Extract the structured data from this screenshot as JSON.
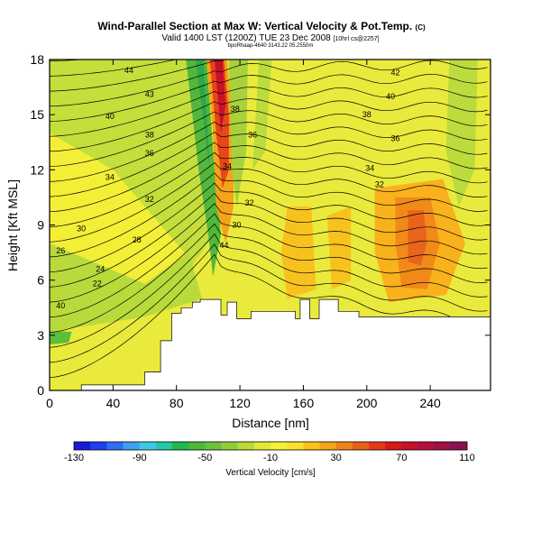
{
  "header": {
    "title": "Wind-Parallel Section at Max W: Vertical Velocity & Pot.Temp.",
    "title_mark": "(C)",
    "subtitle": "Valid 1400 LST (1200Z) TUE 23 Dec 2008",
    "subtitle_note": "[10hrl cs@2257]",
    "tiny_note": "bpoRhaap-4640 3143.22 05.2550m"
  },
  "chart_data": {
    "type": "heatmap",
    "xlabel": "Distance [nm]",
    "ylabel": "Height [Kft MSL]",
    "xlim": [
      0,
      278
    ],
    "ylim": [
      0,
      18
    ],
    "x_ticks": [
      0,
      40,
      80,
      120,
      160,
      200,
      240
    ],
    "y_ticks": [
      0,
      3,
      6,
      9,
      12,
      15,
      18
    ],
    "grid": false,
    "field": "Vertical Velocity [cm/s]",
    "colorbar": {
      "label": "Vertical Velocity [cm/s]",
      "min": -130,
      "max": 110,
      "step": 10,
      "tick_labels": [
        -130,
        -90,
        -50,
        -10,
        30,
        70,
        110
      ],
      "colors": [
        "#1a1ad6",
        "#1f3ff0",
        "#2f6ef0",
        "#3ea0f0",
        "#3fc8e6",
        "#22c8a8",
        "#22b850",
        "#4cb83a",
        "#6cc23c",
        "#92cc3c",
        "#bada3a",
        "#e2e83a",
        "#f6f036",
        "#fbe12c",
        "#f9c21c",
        "#f4a41a",
        "#ee8418",
        "#e8601a",
        "#e03a18",
        "#d41a1a",
        "#c8102a",
        "#b3103a",
        "#9e1046",
        "#8a1050"
      ]
    },
    "background_level": 0.4,
    "contours": {
      "variable": "Potential Temperature",
      "labels": [
        44,
        43,
        40,
        38,
        36,
        34,
        32,
        30,
        28,
        26,
        24,
        22,
        40,
        38,
        36,
        34,
        32,
        30,
        44,
        42,
        40,
        38,
        36,
        34,
        32
      ]
    },
    "terrain": [
      [
        0,
        0
      ],
      [
        20,
        0
      ],
      [
        20,
        0.3
      ],
      [
        60,
        0.3
      ],
      [
        60,
        1
      ],
      [
        70,
        1
      ],
      [
        70,
        2.7
      ],
      [
        77,
        2.7
      ],
      [
        77,
        4.2
      ],
      [
        83,
        4.2
      ],
      [
        83,
        4.5
      ],
      [
        90,
        4.5
      ],
      [
        90,
        4.8
      ],
      [
        95,
        4.8
      ],
      [
        95,
        4.95
      ],
      [
        108,
        4.95
      ],
      [
        108,
        4.1
      ],
      [
        112,
        4.1
      ],
      [
        112,
        4.8
      ],
      [
        118,
        4.8
      ],
      [
        118,
        3.9
      ],
      [
        125,
        3.9
      ],
      [
        125,
        3.9
      ],
      [
        127,
        3.9
      ],
      [
        127,
        4.3
      ],
      [
        155,
        4.3
      ],
      [
        155,
        3.9
      ],
      [
        158,
        3.9
      ],
      [
        158,
        4.95
      ],
      [
        164,
        4.95
      ],
      [
        164,
        3.9
      ],
      [
        170,
        3.9
      ],
      [
        170,
        4.95
      ],
      [
        182,
        4.95
      ],
      [
        182,
        4.3
      ],
      [
        195,
        4.3
      ],
      [
        195,
        4.0
      ],
      [
        278,
        4.0
      ],
      [
        278,
        0
      ]
    ],
    "updraft_core": [
      [
        102,
        18
      ],
      [
        110,
        18
      ],
      [
        113,
        15
      ],
      [
        115,
        12
      ],
      [
        113,
        9
      ],
      [
        110,
        8
      ]
    ],
    "downdraft_core": [
      [
        96,
        18
      ],
      [
        100,
        15
      ],
      [
        103,
        12
      ],
      [
        106,
        9
      ],
      [
        108,
        6
      ]
    ]
  }
}
